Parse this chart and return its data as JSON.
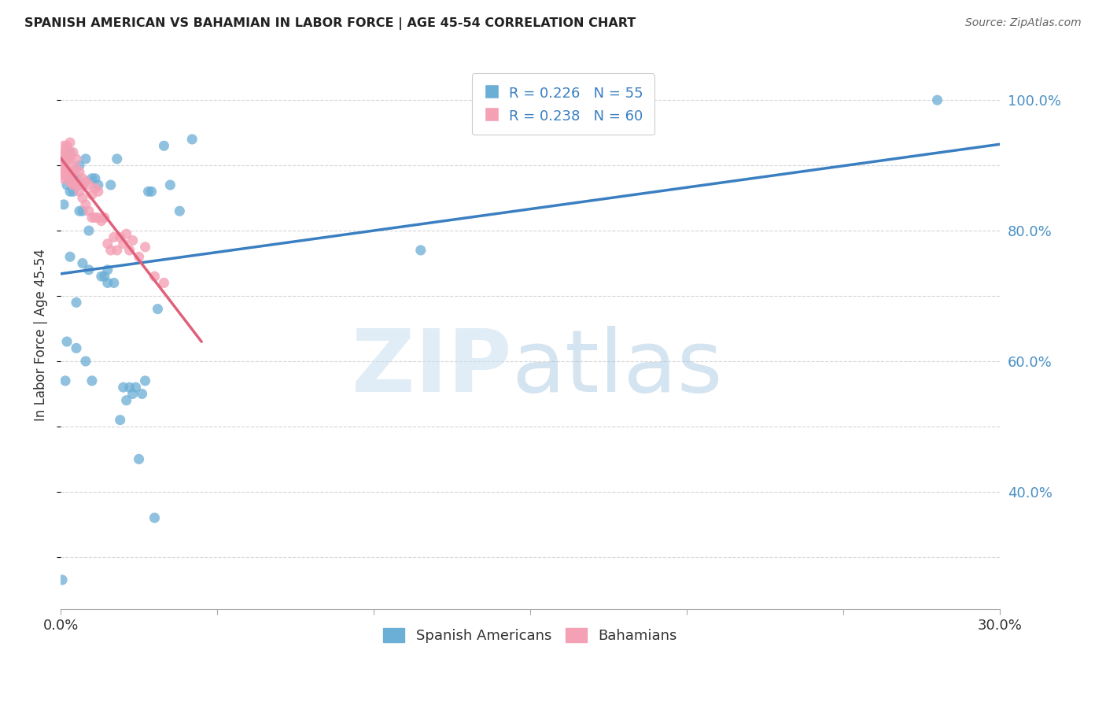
{
  "title": "SPANISH AMERICAN VS BAHAMIAN IN LABOR FORCE | AGE 45-54 CORRELATION CHART",
  "source": "Source: ZipAtlas.com",
  "ylabel": "In Labor Force | Age 45-54",
  "xlim": [
    0.0,
    0.3
  ],
  "ylim": [
    0.22,
    1.06
  ],
  "xticks": [
    0.0,
    0.05,
    0.1,
    0.15,
    0.2,
    0.25,
    0.3
  ],
  "yticks_right": [
    0.4,
    0.6,
    0.8,
    1.0
  ],
  "ytick_labels_right": [
    "40.0%",
    "60.0%",
    "80.0%",
    "100.0%"
  ],
  "blue_R": 0.226,
  "blue_N": 55,
  "pink_R": 0.238,
  "pink_N": 60,
  "blue_color": "#6baed6",
  "pink_color": "#f4a0b5",
  "trend_blue": "#3a7fc1",
  "trend_pink": "#e0607a",
  "figsize": [
    14.06,
    8.92
  ],
  "dpi": 100,
  "blue_scatter_x": [
    0.0005,
    0.001,
    0.0015,
    0.002,
    0.002,
    0.003,
    0.003,
    0.003,
    0.004,
    0.004,
    0.005,
    0.005,
    0.005,
    0.006,
    0.006,
    0.007,
    0.007,
    0.008,
    0.008,
    0.009,
    0.009,
    0.01,
    0.01,
    0.011,
    0.012,
    0.013,
    0.014,
    0.015,
    0.015,
    0.016,
    0.017,
    0.018,
    0.019,
    0.02,
    0.021,
    0.022,
    0.023,
    0.024,
    0.025,
    0.026,
    0.027,
    0.028,
    0.029,
    0.03,
    0.031,
    0.033,
    0.035,
    0.038,
    0.042,
    0.115,
    0.28,
    0.002,
    0.003,
    0.005,
    0.007
  ],
  "blue_scatter_y": [
    0.265,
    0.84,
    0.57,
    0.87,
    0.91,
    0.86,
    0.89,
    0.92,
    0.88,
    0.86,
    0.88,
    0.87,
    0.62,
    0.83,
    0.9,
    0.83,
    0.87,
    0.91,
    0.6,
    0.74,
    0.8,
    0.88,
    0.57,
    0.88,
    0.87,
    0.73,
    0.73,
    0.72,
    0.74,
    0.87,
    0.72,
    0.91,
    0.51,
    0.56,
    0.54,
    0.56,
    0.55,
    0.56,
    0.45,
    0.55,
    0.57,
    0.86,
    0.86,
    0.36,
    0.68,
    0.93,
    0.87,
    0.83,
    0.94,
    0.77,
    1.0,
    0.63,
    0.76,
    0.69,
    0.75
  ],
  "pink_scatter_x": [
    0.0003,
    0.0003,
    0.0004,
    0.0005,
    0.0006,
    0.0007,
    0.0008,
    0.001,
    0.001,
    0.001,
    0.001,
    0.0015,
    0.0015,
    0.002,
    0.002,
    0.002,
    0.002,
    0.0025,
    0.003,
    0.003,
    0.003,
    0.003,
    0.003,
    0.004,
    0.004,
    0.004,
    0.004,
    0.005,
    0.005,
    0.005,
    0.006,
    0.006,
    0.006,
    0.007,
    0.007,
    0.008,
    0.008,
    0.009,
    0.009,
    0.01,
    0.01,
    0.011,
    0.011,
    0.012,
    0.012,
    0.013,
    0.014,
    0.015,
    0.016,
    0.017,
    0.018,
    0.019,
    0.02,
    0.021,
    0.022,
    0.023,
    0.025,
    0.027,
    0.03,
    0.033
  ],
  "pink_scatter_y": [
    0.905,
    0.91,
    0.915,
    0.9,
    0.895,
    0.91,
    0.88,
    0.9,
    0.92,
    0.93,
    0.885,
    0.91,
    0.895,
    0.89,
    0.91,
    0.93,
    0.885,
    0.92,
    0.88,
    0.9,
    0.91,
    0.935,
    0.875,
    0.87,
    0.89,
    0.92,
    0.875,
    0.87,
    0.895,
    0.91,
    0.86,
    0.87,
    0.89,
    0.85,
    0.88,
    0.84,
    0.875,
    0.83,
    0.87,
    0.82,
    0.855,
    0.82,
    0.865,
    0.82,
    0.86,
    0.815,
    0.82,
    0.78,
    0.77,
    0.79,
    0.77,
    0.79,
    0.78,
    0.795,
    0.77,
    0.785,
    0.76,
    0.775,
    0.73,
    0.72
  ],
  "pink_trend_xlim": [
    0.0,
    0.045
  ],
  "blue_trend_xlim": [
    0.0,
    0.3
  ]
}
